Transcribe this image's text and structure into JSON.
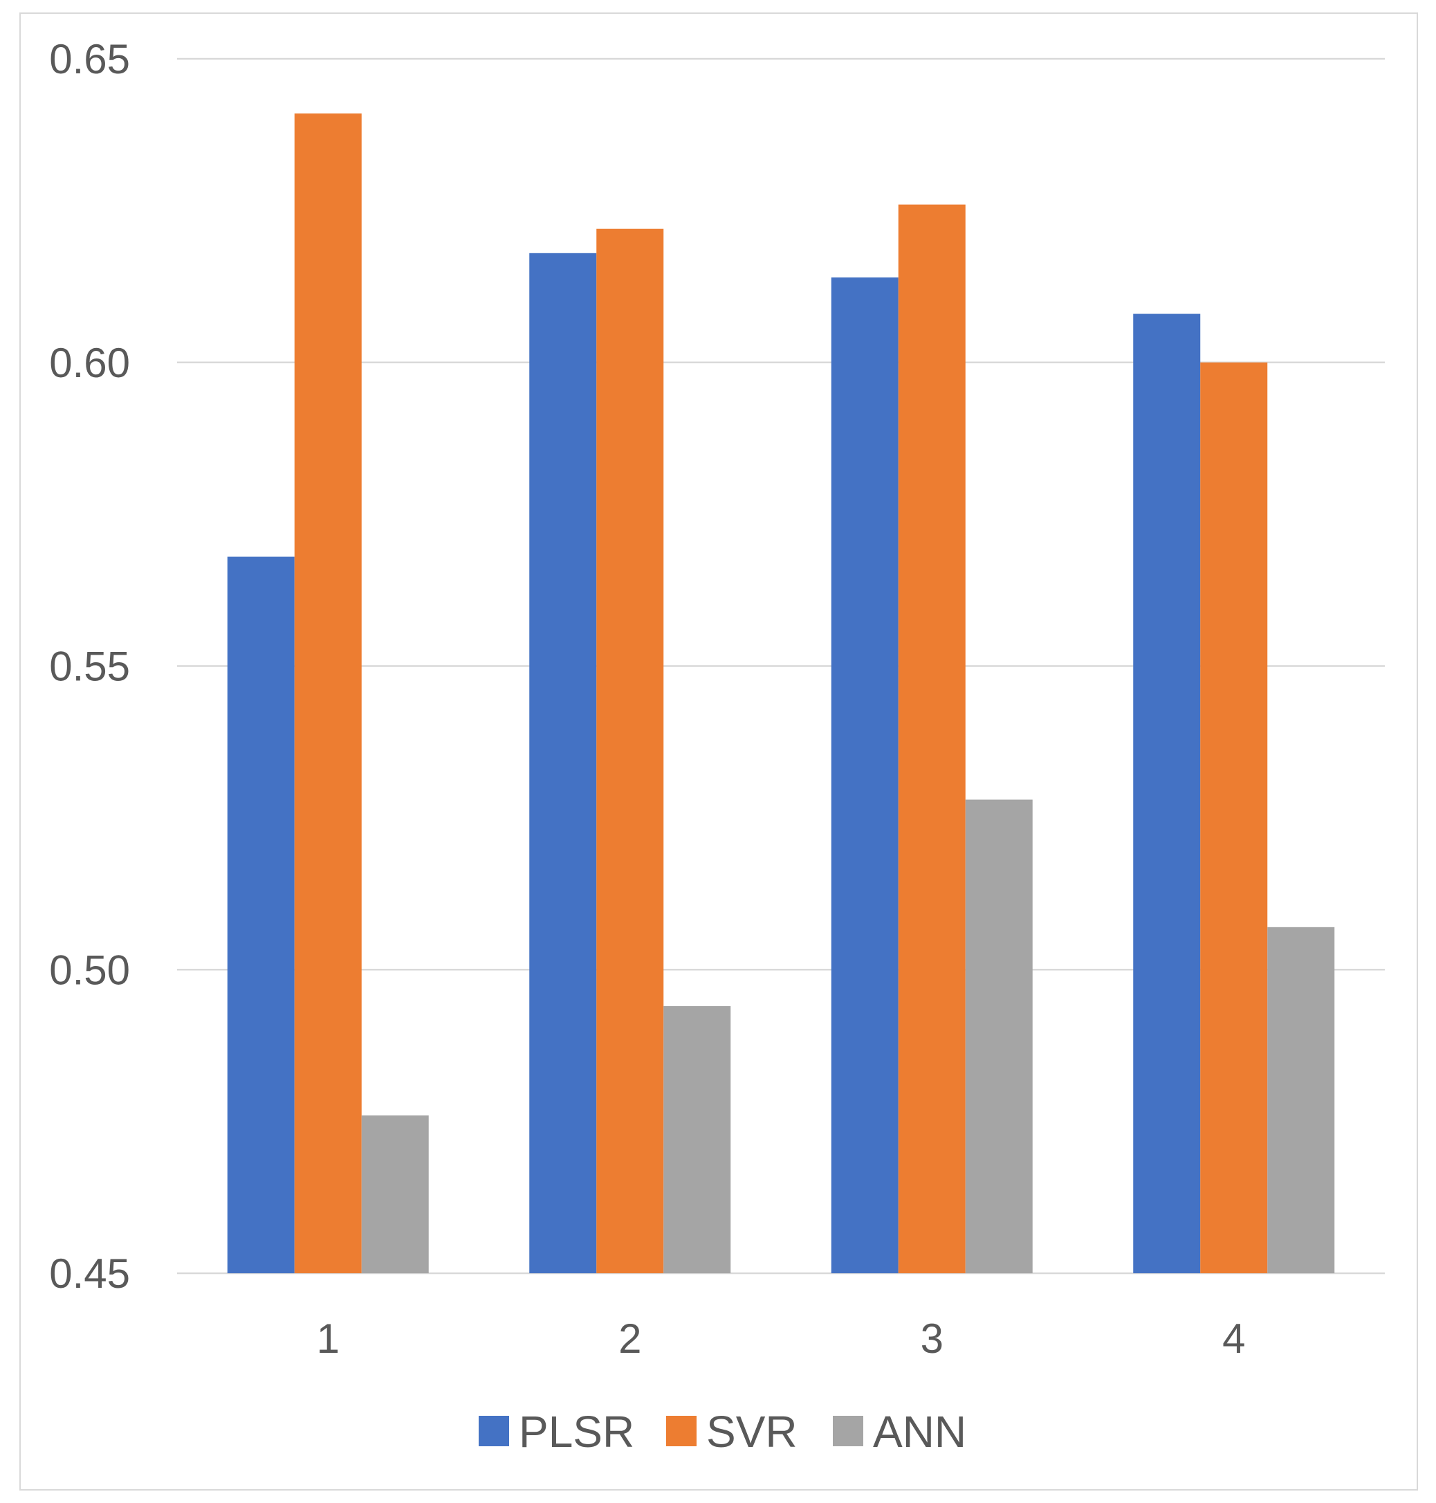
{
  "chart_data": {
    "type": "bar",
    "title": "",
    "xlabel": "",
    "ylabel": "",
    "categories": [
      "1",
      "2",
      "3",
      "4"
    ],
    "series": [
      {
        "name": "PLSR",
        "color": "#4472C4",
        "values": [
          0.568,
          0.618,
          0.614,
          0.608
        ]
      },
      {
        "name": "SVR",
        "color": "#ED7D31",
        "values": [
          0.641,
          0.622,
          0.626,
          0.6
        ]
      },
      {
        "name": "ANN",
        "color": "#A5A5A5",
        "values": [
          0.476,
          0.494,
          0.528,
          0.507
        ]
      }
    ],
    "ylim": [
      0.45,
      0.65
    ],
    "yticks": [
      "0.45",
      "0.50",
      "0.55",
      "0.60",
      "0.65"
    ],
    "grid": true,
    "legend_position": "bottom"
  }
}
